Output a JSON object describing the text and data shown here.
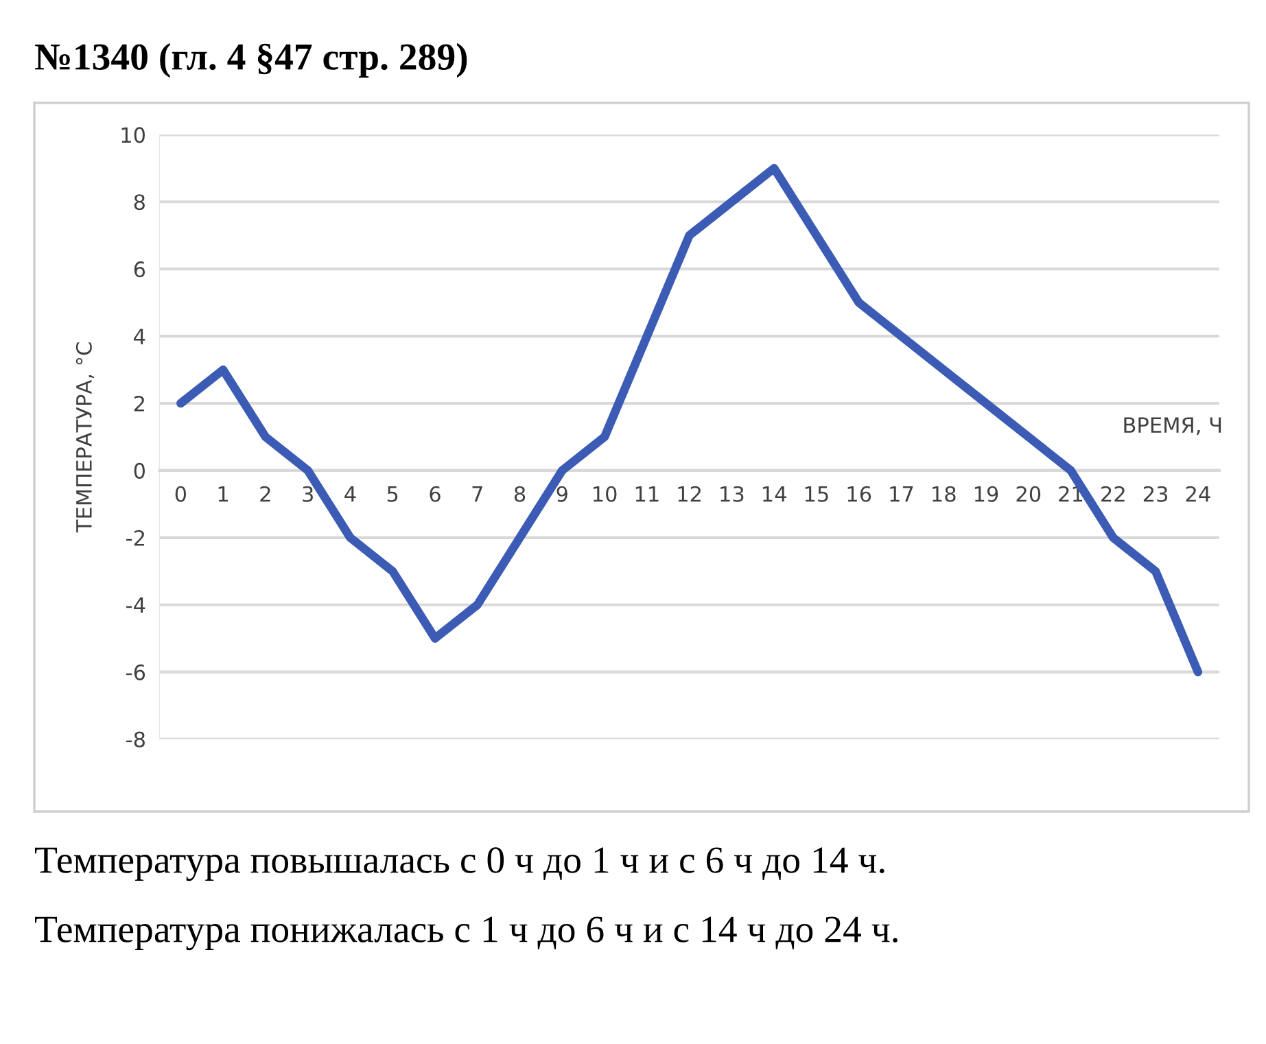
{
  "chart_data": {
    "type": "line",
    "title": "№1340 (гл. 4 §47 стр. 289)",
    "xlabel": "ВРЕМЯ, Ч",
    "ylabel": "ТЕМПЕРАТУРА, °C",
    "categories": [
      "0",
      "1",
      "2",
      "3",
      "4",
      "5",
      "6",
      "7",
      "8",
      "9",
      "10",
      "11",
      "12",
      "13",
      "14",
      "15",
      "16",
      "17",
      "18",
      "19",
      "20",
      "21",
      "22",
      "23",
      "24"
    ],
    "series": [
      {
        "color": "#3b5bb5",
        "values": [
          2,
          3,
          1,
          0,
          -2,
          -3,
          -5,
          -4,
          -2,
          0,
          1,
          4,
          7,
          8,
          9,
          7,
          5,
          4,
          3,
          2,
          1,
          0,
          -2,
          -3,
          -6
        ]
      }
    ],
    "ylim": [
      -8,
      10
    ],
    "yticks": [
      -8,
      -6,
      -4,
      -2,
      0,
      2,
      4,
      6,
      8,
      10
    ],
    "grid": "y",
    "legend": false,
    "line_style": "solid",
    "annotations": [
      "Температура повышалась с 0 ч до 1 ч и с 6 ч до 14 ч.",
      "Температура понижалась с 1 ч до 6 ч и с 14 ч до 24 ч."
    ]
  }
}
